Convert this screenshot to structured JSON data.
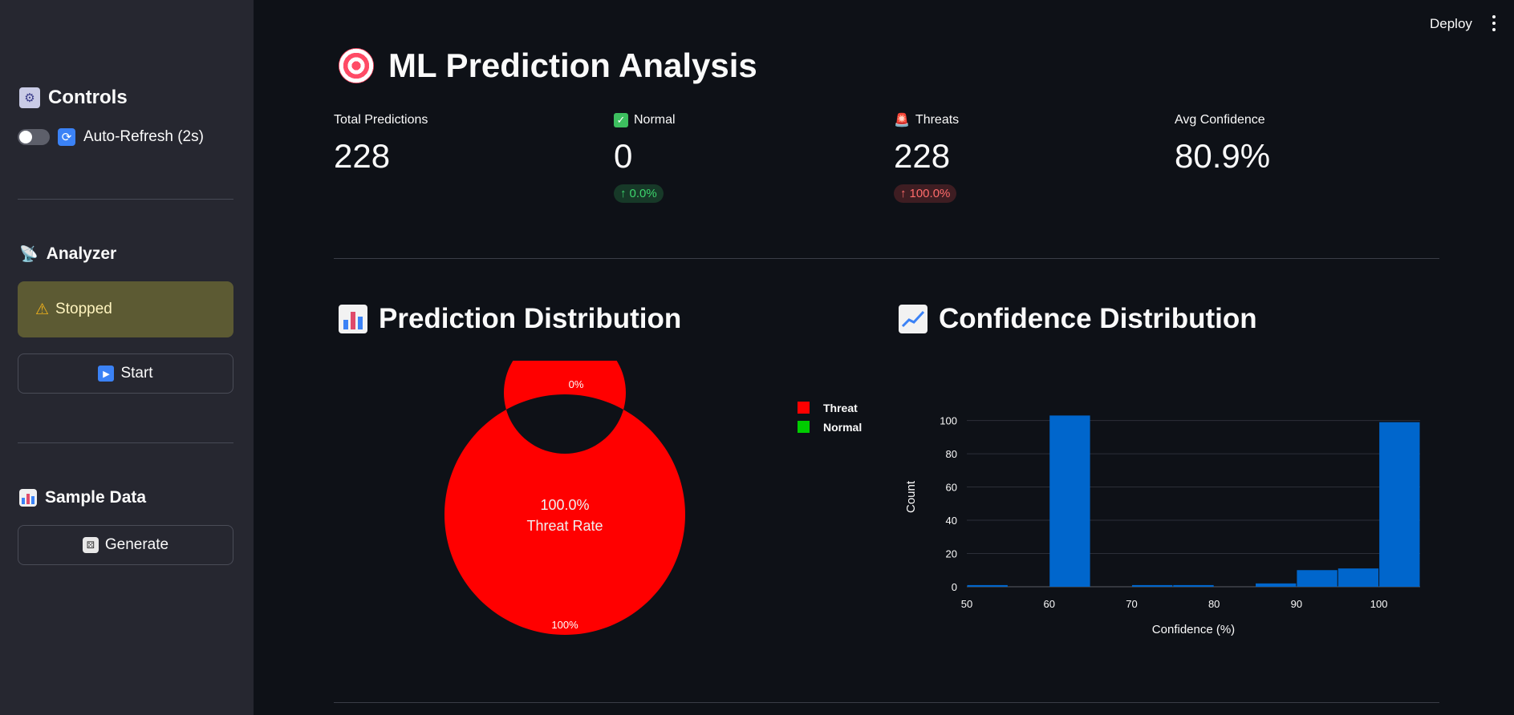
{
  "header": {
    "deploy_label": "Deploy"
  },
  "sidebar": {
    "controls_title": "Controls",
    "auto_refresh_label": "Auto-Refresh (2s)",
    "auto_refresh_on": false,
    "analyzer_title": "Analyzer",
    "status_text": "Stopped",
    "start_label": "Start",
    "sample_title": "Sample Data",
    "generate_label": "Generate"
  },
  "page": {
    "title": "ML Prediction Analysis"
  },
  "metrics": [
    {
      "label": "Total Predictions",
      "value": "228"
    },
    {
      "label": "Normal",
      "value": "0",
      "delta": "0.0%"
    },
    {
      "label": "Threats",
      "value": "228",
      "delta": "100.0%"
    },
    {
      "label": "Avg Confidence",
      "value": "80.9%"
    }
  ],
  "sections": {
    "prediction_title": "Prediction Distribution",
    "confidence_title": "Confidence Distribution"
  },
  "chart_data": [
    {
      "type": "pie",
      "donut": true,
      "labels": [
        "Threat",
        "Normal"
      ],
      "values": [
        228,
        0
      ],
      "slice_labels": [
        "100%",
        "0%"
      ],
      "colors": [
        "#ff0000",
        "#00cc00"
      ],
      "center_text": [
        "100.0%",
        "Threat Rate"
      ],
      "legend": "top-right"
    },
    {
      "type": "bar",
      "xlabel": "Confidence (%)",
      "ylabel": "Count",
      "xlim": [
        50,
        105
      ],
      "ylim": [
        0,
        108
      ],
      "xticks": [
        50,
        60,
        70,
        80,
        90,
        100
      ],
      "yticks": [
        0,
        20,
        40,
        60,
        80,
        100
      ],
      "grid": true,
      "color": "#0066cc",
      "bins": [
        {
          "start": 50,
          "end": 55,
          "count": 1
        },
        {
          "start": 55,
          "end": 60,
          "count": 0
        },
        {
          "start": 60,
          "end": 65,
          "count": 103
        },
        {
          "start": 65,
          "end": 70,
          "count": 0
        },
        {
          "start": 70,
          "end": 75,
          "count": 1
        },
        {
          "start": 75,
          "end": 80,
          "count": 1
        },
        {
          "start": 80,
          "end": 85,
          "count": 0
        },
        {
          "start": 85,
          "end": 90,
          "count": 2
        },
        {
          "start": 90,
          "end": 95,
          "count": 10
        },
        {
          "start": 95,
          "end": 100,
          "count": 11
        },
        {
          "start": 100,
          "end": 105,
          "count": 99
        }
      ]
    }
  ],
  "icons": {
    "controls": "control-knobs-icon",
    "refresh": "refresh-icon",
    "analyzer": "satellite-dish-icon",
    "warning": "warning-icon",
    "start": "play-icon",
    "sample": "bar-chart-icon",
    "generate": "dice-icon",
    "title": "target-icon",
    "normal": "check-icon",
    "threats": "siren-icon",
    "prediction": "bar-chart-icon",
    "confidence": "line-chart-icon"
  }
}
